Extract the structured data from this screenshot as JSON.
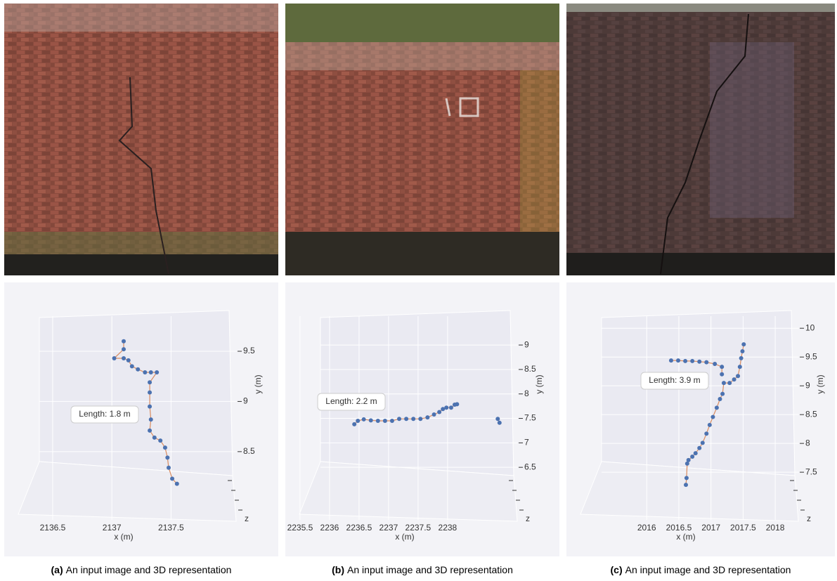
{
  "chart_data": [
    {
      "type": "line",
      "annotation": "Length: 1.8 m",
      "xlabel": "x (m)",
      "ylabel": "y (m)",
      "zlabel": "z",
      "color": "#4c72b0",
      "x": [
        2137.1,
        2137.1,
        2137.02,
        2137.1,
        2137.14,
        2137.17,
        2137.22,
        2137.28,
        2137.33,
        2137.38,
        2137.32,
        2137.32,
        2137.32,
        2137.33,
        2137.32,
        2137.36,
        2137.41,
        2137.45,
        2137.47,
        2137.48,
        2137.51,
        2137.55
      ],
      "values": [
        9.6,
        9.52,
        9.43,
        9.43,
        9.41,
        9.35,
        9.32,
        9.29,
        9.29,
        9.29,
        9.19,
        9.09,
        8.95,
        8.82,
        8.71,
        8.64,
        8.61,
        8.54,
        8.44,
        8.34,
        8.23,
        8.18
      ],
      "xlim": [
        2136.15,
        2138.05
      ],
      "xticks": [
        2136.5,
        2137,
        2137.5
      ],
      "ylim": [
        8.1,
        9.85
      ],
      "yticks": [
        8.5,
        9,
        9.5
      ],
      "grid": true
    },
    {
      "type": "line",
      "annotation": "Length: 2.2 m",
      "xlabel": "x (m)",
      "ylabel": "y (m)",
      "zlabel": "z",
      "color": "#4c72b0",
      "x": [
        2236.42,
        2236.48,
        2236.58,
        2236.7,
        2236.82,
        2236.94,
        2237.06,
        2237.18,
        2237.3,
        2237.42,
        2237.54,
        2237.66,
        2237.77,
        2237.86,
        2237.92,
        2237.98,
        2238.06,
        2238.12,
        2238.16,
        null,
        2238.85,
        2238.88
      ],
      "values": [
        7.38,
        7.45,
        7.48,
        7.46,
        7.45,
        7.45,
        7.45,
        7.49,
        7.49,
        7.49,
        7.49,
        7.52,
        7.58,
        7.63,
        7.69,
        7.72,
        7.72,
        7.78,
        7.79,
        null,
        7.49,
        7.41
      ],
      "xlim": [
        2235.37,
        2239.18
      ],
      "xticks": [
        2235.5,
        2236,
        2236.5,
        2237,
        2237.5,
        2238
      ],
      "ylim": [
        6.0,
        9.59
      ],
      "yticks": [
        6.5,
        7,
        7.5,
        8,
        8.5,
        9
      ],
      "grid": true
    },
    {
      "type": "line",
      "annotation": "Length: 3.9 m",
      "xlabel": "x (m)",
      "ylabel": "y (m)",
      "zlabel": "z",
      "color": "#4c72b0",
      "x": [
        2017.51,
        2017.49,
        2017.47,
        2017.45,
        2017.42,
        2017.36,
        2017.29,
        2017.2,
        2017.18,
        2017.14,
        2017.09,
        2017.03,
        2016.98,
        2016.93,
        2016.87,
        2016.82,
        2016.76,
        2016.71,
        2016.65,
        2016.63,
        2016.62,
        2016.61,
        null,
        2016.38,
        2016.49,
        2016.6,
        2016.71,
        2016.82,
        2016.93,
        2017.06,
        2017.17,
        2017.17
      ],
      "values": [
        9.72,
        9.6,
        9.48,
        9.33,
        9.17,
        9.11,
        9.05,
        9.05,
        8.86,
        8.77,
        8.62,
        8.46,
        8.32,
        8.17,
        8.01,
        7.92,
        7.83,
        7.77,
        7.71,
        7.65,
        7.4,
        7.28,
        null,
        9.44,
        9.44,
        9.43,
        9.43,
        9.42,
        9.41,
        9.38,
        9.33,
        9.2
      ],
      "xlim": [
        2014.86,
        2018.36
      ],
      "xticks": [
        2016,
        2016.5,
        2017,
        2017.5,
        2018
      ],
      "ylim": [
        7.16,
        10.21
      ],
      "yticks": [
        7.5,
        8,
        8.5,
        9,
        9.5,
        10
      ],
      "grid": true
    }
  ],
  "captions": [
    {
      "label": "(a)",
      "text": "An input image and 3D representation"
    },
    {
      "label": "(b)",
      "text": "An input image and 3D representation"
    },
    {
      "label": "(c)",
      "text": "An input image and 3D representation"
    }
  ]
}
